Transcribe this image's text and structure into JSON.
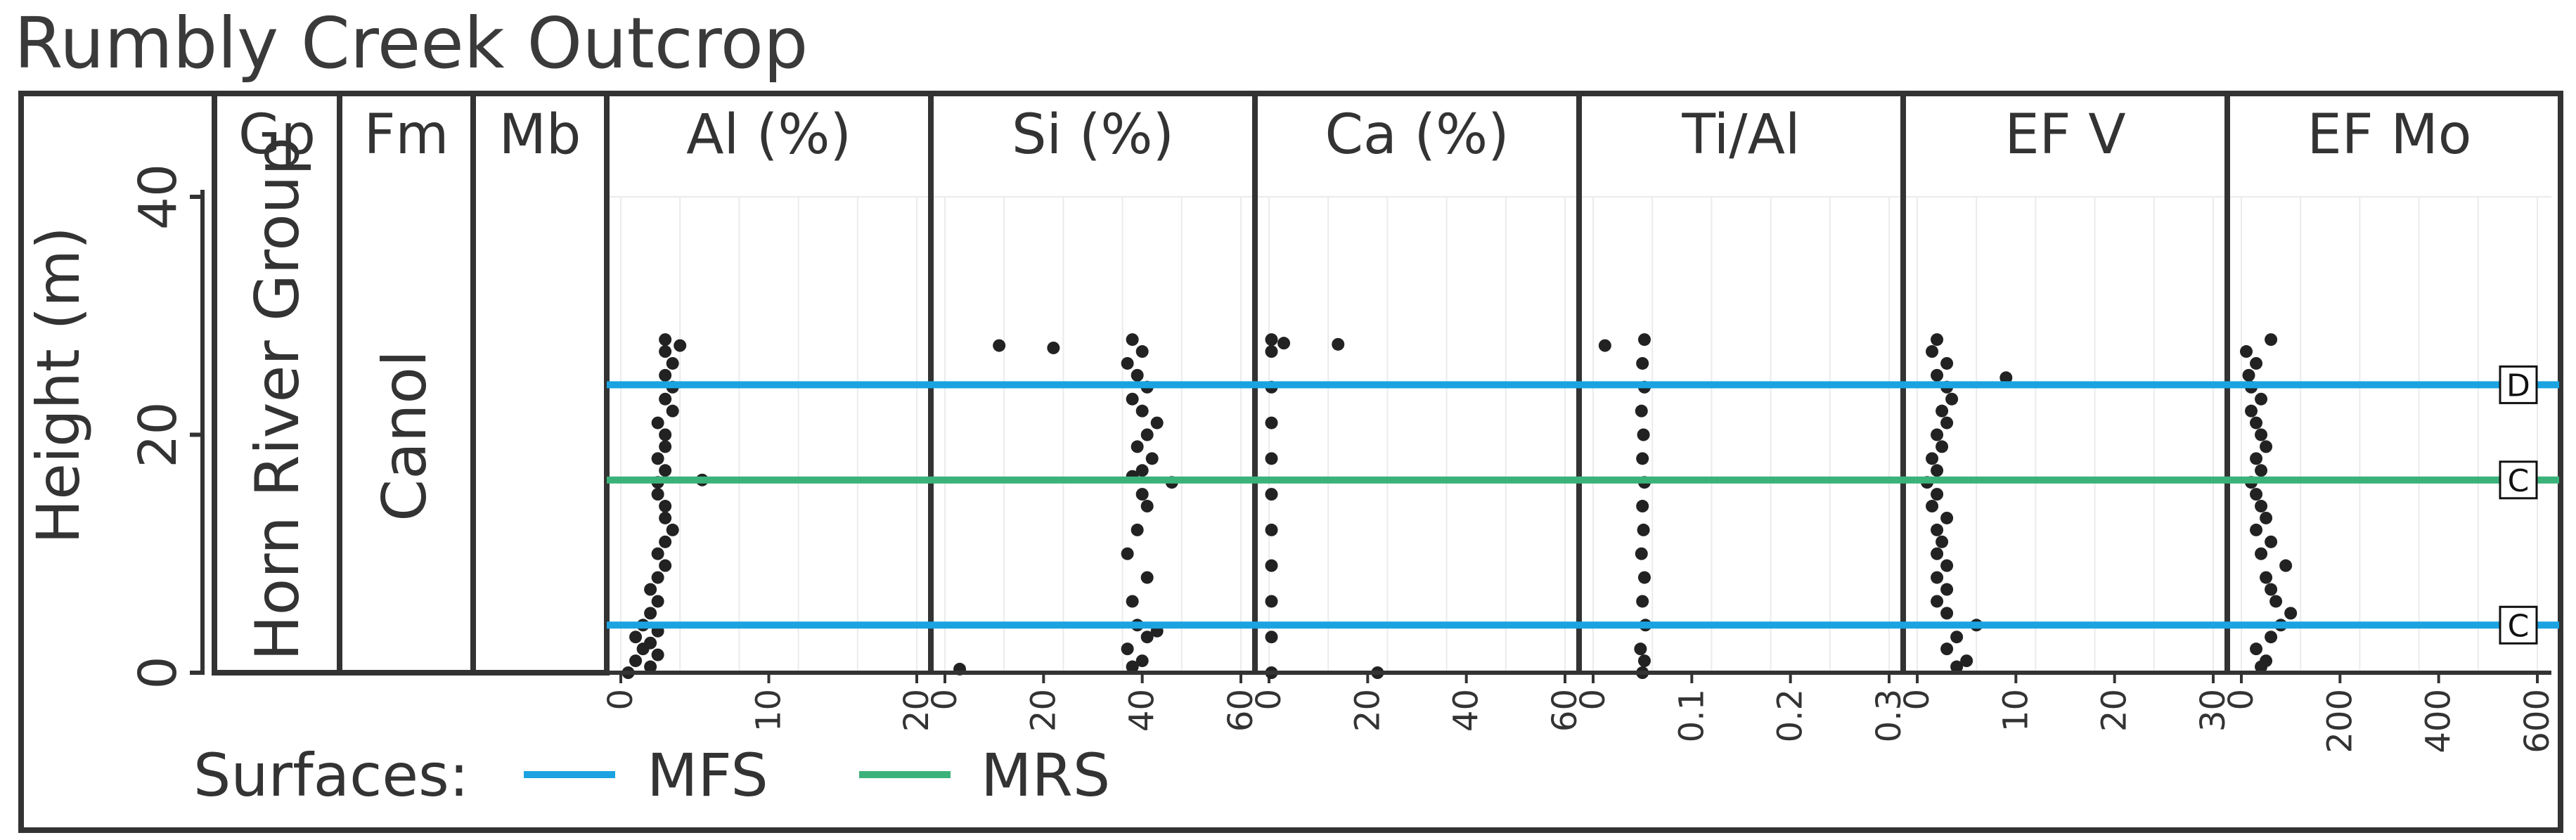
{
  "title": "Rumbly Creek Outcrop",
  "strat_headers": [
    "Gp",
    "Fm",
    "Mb"
  ],
  "group_label": "Horn River Group",
  "formation_label": "Canol",
  "y_axis": {
    "label": "Height (m)",
    "ticks": [
      "0",
      "20",
      "40"
    ],
    "range": [
      0,
      40
    ]
  },
  "legend": {
    "title": "Surfaces:",
    "items": [
      "MFS",
      "MRS"
    ]
  },
  "colors": {
    "MFS": "#1aa3e0",
    "MRS": "#3bb27a",
    "points": "#222222",
    "frame": "#333333"
  },
  "chart_data": [
    {
      "type": "scatter",
      "title": "Al (%)",
      "xlim": [
        0,
        20
      ],
      "xticks": [
        "0",
        "10",
        "20"
      ],
      "series": [
        {
          "values": [
            [
              0.5,
              0
            ],
            [
              2,
              0.5
            ],
            [
              1,
              1
            ],
            [
              2.5,
              1.5
            ],
            [
              1.5,
              2
            ],
            [
              2,
              2.5
            ],
            [
              1,
              3
            ],
            [
              2.5,
              3.5
            ],
            [
              1.5,
              4
            ],
            [
              2,
              5
            ],
            [
              2.5,
              6
            ],
            [
              2,
              7
            ],
            [
              2.5,
              8
            ],
            [
              3,
              9
            ],
            [
              2.5,
              10
            ],
            [
              3,
              11
            ],
            [
              3.5,
              12
            ],
            [
              3,
              13
            ],
            [
              3,
              14
            ],
            [
              2.5,
              15
            ],
            [
              2.5,
              16
            ],
            [
              5.5,
              16.2
            ],
            [
              3,
              17
            ],
            [
              2.5,
              18
            ],
            [
              3,
              19
            ],
            [
              3,
              20
            ],
            [
              2.5,
              21
            ],
            [
              3.5,
              22
            ],
            [
              3,
              23
            ],
            [
              3.5,
              24
            ],
            [
              3,
              25
            ],
            [
              3.5,
              26
            ],
            [
              3,
              27
            ],
            [
              4,
              27.5
            ],
            [
              3,
              28
            ]
          ]
        }
      ]
    },
    {
      "type": "scatter",
      "title": "Si (%)",
      "xlim": [
        0,
        60
      ],
      "xticks": [
        "0",
        "20",
        "40",
        "60"
      ],
      "series": [
        {
          "values": [
            [
              3,
              0.3
            ],
            [
              38,
              0.5
            ],
            [
              40,
              1
            ],
            [
              37,
              2
            ],
            [
              41,
              3
            ],
            [
              43,
              3.5
            ],
            [
              39,
              4
            ],
            [
              38,
              6
            ],
            [
              41,
              8
            ],
            [
              37,
              10
            ],
            [
              39,
              12
            ],
            [
              41,
              14
            ],
            [
              40,
              15
            ],
            [
              46,
              16
            ],
            [
              38,
              16.5
            ],
            [
              40,
              17
            ],
            [
              42,
              18
            ],
            [
              39,
              19
            ],
            [
              41,
              20
            ],
            [
              43,
              21
            ],
            [
              40,
              22
            ],
            [
              38,
              23
            ],
            [
              41,
              24
            ],
            [
              39,
              25
            ],
            [
              37,
              26
            ],
            [
              40,
              27
            ],
            [
              11,
              27.5
            ],
            [
              22,
              27.3
            ],
            [
              38,
              28
            ]
          ]
        }
      ]
    },
    {
      "type": "scatter",
      "title": "Ca (%)",
      "xlim": [
        0,
        60
      ],
      "xticks": [
        "0",
        "20",
        "40",
        "60"
      ],
      "series": [
        {
          "values": [
            [
              0.5,
              0
            ],
            [
              0.5,
              3
            ],
            [
              0.5,
              6
            ],
            [
              0.5,
              9
            ],
            [
              0.5,
              12
            ],
            [
              0.5,
              15
            ],
            [
              0.5,
              18
            ],
            [
              0.5,
              21
            ],
            [
              0.5,
              24
            ],
            [
              0.5,
              27
            ],
            [
              0.5,
              28
            ],
            [
              3,
              27.7
            ],
            [
              14,
              27.6
            ],
            [
              22,
              0
            ]
          ]
        }
      ]
    },
    {
      "type": "scatter",
      "title": "Ti/Al",
      "xlim": [
        0,
        0.3
      ],
      "xticks": [
        "0",
        "0.1",
        "0.2",
        "0.3"
      ],
      "series": [
        {
          "values": [
            [
              0.012,
              27.5
            ],
            [
              0.05,
              0
            ],
            [
              0.052,
              1
            ],
            [
              0.048,
              2
            ],
            [
              0.053,
              4
            ],
            [
              0.05,
              6
            ],
            [
              0.052,
              8
            ],
            [
              0.049,
              10
            ],
            [
              0.051,
              12
            ],
            [
              0.05,
              14
            ],
            [
              0.052,
              16
            ],
            [
              0.05,
              18
            ],
            [
              0.051,
              20
            ],
            [
              0.049,
              22
            ],
            [
              0.052,
              24
            ],
            [
              0.05,
              26
            ],
            [
              0.052,
              28
            ]
          ]
        }
      ]
    },
    {
      "type": "scatter",
      "title": "EF V",
      "xlim": [
        0,
        30
      ],
      "xticks": [
        "0",
        "10",
        "20",
        "30"
      ],
      "series": [
        {
          "values": [
            [
              4,
              0.5
            ],
            [
              5,
              1
            ],
            [
              3,
              2
            ],
            [
              4,
              3
            ],
            [
              6,
              4
            ],
            [
              3,
              5
            ],
            [
              2,
              6
            ],
            [
              3,
              7
            ],
            [
              2,
              8
            ],
            [
              3,
              9
            ],
            [
              2,
              10
            ],
            [
              2.5,
              11
            ],
            [
              2,
              12
            ],
            [
              3,
              13
            ],
            [
              1.5,
              14
            ],
            [
              2,
              15
            ],
            [
              1,
              16
            ],
            [
              2,
              17
            ],
            [
              1.5,
              18
            ],
            [
              2.5,
              19
            ],
            [
              2,
              20
            ],
            [
              3,
              21
            ],
            [
              2.5,
              22
            ],
            [
              3.5,
              23
            ],
            [
              3,
              24
            ],
            [
              9,
              24.8
            ],
            [
              2,
              25
            ],
            [
              3,
              26
            ],
            [
              1.5,
              27
            ],
            [
              2,
              28
            ]
          ]
        }
      ]
    },
    {
      "type": "scatter",
      "title": "EF Mo",
      "xlim": [
        0,
        600
      ],
      "xticks": [
        "0",
        "200",
        "400",
        "600"
      ],
      "series": [
        {
          "values": [
            [
              40,
              0.5
            ],
            [
              50,
              1
            ],
            [
              30,
              2
            ],
            [
              60,
              3
            ],
            [
              80,
              4
            ],
            [
              100,
              5
            ],
            [
              70,
              6
            ],
            [
              60,
              7
            ],
            [
              50,
              8
            ],
            [
              90,
              9
            ],
            [
              40,
              10
            ],
            [
              60,
              11
            ],
            [
              30,
              12
            ],
            [
              50,
              13
            ],
            [
              40,
              14
            ],
            [
              30,
              15
            ],
            [
              20,
              16
            ],
            [
              40,
              17
            ],
            [
              30,
              18
            ],
            [
              50,
              19
            ],
            [
              40,
              20
            ],
            [
              30,
              21
            ],
            [
              20,
              22
            ],
            [
              40,
              23
            ],
            [
              20,
              24
            ],
            [
              15,
              25
            ],
            [
              30,
              26
            ],
            [
              10,
              27
            ],
            [
              60,
              28
            ]
          ]
        }
      ]
    }
  ],
  "surfaces": [
    {
      "type": "MFS",
      "height": 4,
      "label": "C"
    },
    {
      "type": "MRS",
      "height": 16.2,
      "label": "C"
    },
    {
      "type": "MFS",
      "height": 24.2,
      "label": "D"
    }
  ]
}
